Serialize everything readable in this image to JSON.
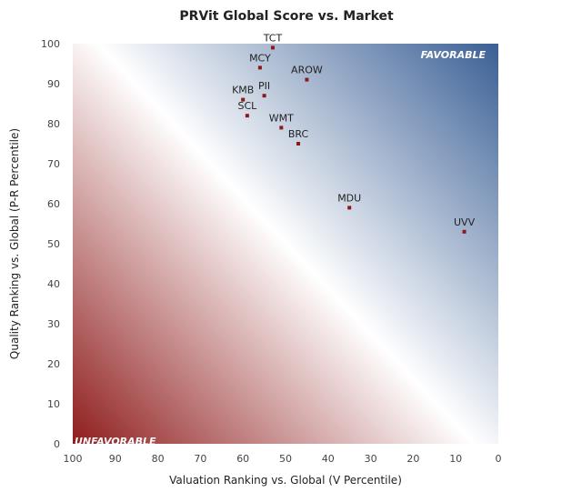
{
  "chart_data": {
    "type": "scatter",
    "title": "PRVit Global Score vs. Market",
    "xlabel": "Valuation Ranking vs. Global (V Percentile)",
    "ylabel": "Quality Ranking vs. Global (P-R Percentile)",
    "xlim": [
      100,
      0
    ],
    "ylim": [
      0,
      100
    ],
    "x_reversed": true,
    "x_ticks": [
      "100",
      "90",
      "80",
      "70",
      "60",
      "50",
      "40",
      "30",
      "20",
      "10",
      "0"
    ],
    "y_ticks": [
      "0",
      "10",
      "20",
      "30",
      "40",
      "50",
      "60",
      "70",
      "80",
      "90",
      "100"
    ],
    "favorable_label": "FAVORABLE",
    "unfavorable_label": "UNFAVORABLE",
    "point_color": "#8b1a1a",
    "favorable_color": "#3a5f95",
    "unfavorable_color": "#8f1d1d",
    "points": [
      {
        "label": "TCT",
        "x": 53,
        "y": 99
      },
      {
        "label": "MCY",
        "x": 56,
        "y": 94
      },
      {
        "label": "AROW",
        "x": 45,
        "y": 91
      },
      {
        "label": "KMB",
        "x": 60,
        "y": 86
      },
      {
        "label": "PII",
        "x": 55,
        "y": 87
      },
      {
        "label": "SCL",
        "x": 59,
        "y": 82
      },
      {
        "label": "WMT",
        "x": 51,
        "y": 79
      },
      {
        "label": "BRC",
        "x": 47,
        "y": 75
      },
      {
        "label": "MDU",
        "x": 35,
        "y": 59
      },
      {
        "label": "UVV",
        "x": 8,
        "y": 53
      }
    ]
  }
}
